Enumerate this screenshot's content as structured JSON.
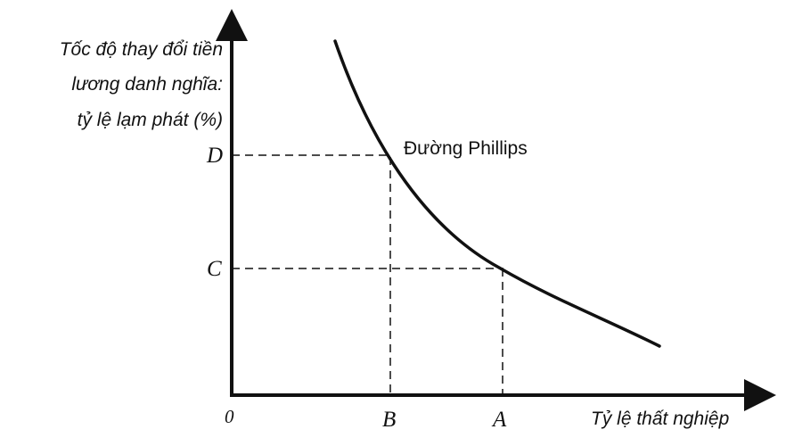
{
  "y_axis_label_lines": [
    "Tốc độ thay đổi tiền",
    "lương danh nghĩa:",
    "tỷ lệ lạm phát (%)"
  ],
  "x_axis_label": "Tỷ lệ thất nghiệp",
  "origin_label": "0",
  "curve_label": "Đường Phillips",
  "y_marks": [
    "D",
    "C"
  ],
  "x_marks": [
    "B",
    "A"
  ]
}
